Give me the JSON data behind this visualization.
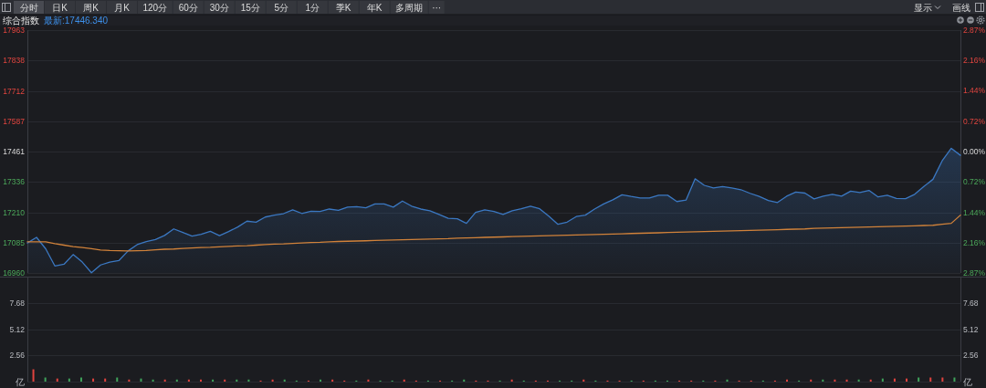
{
  "chart_data": [
    {
      "type": "area",
      "title": "综合指数",
      "subtitle": "最新:17446.340",
      "annotations": [
        "分时",
        "日K",
        "周K",
        "月K",
        "120分",
        "60分",
        "30分",
        "15分",
        "5分",
        "1分",
        "季K",
        "年K",
        "多周期",
        "···",
        "显示",
        "画线"
      ],
      "categories": [
        null,
        null,
        null,
        null,
        null,
        null,
        null,
        null,
        null,
        null,
        null,
        null,
        null,
        null,
        null,
        null,
        null,
        null,
        null,
        null,
        null,
        null,
        null,
        null,
        null,
        null,
        null,
        null,
        null,
        null,
        null,
        null,
        null,
        null,
        null,
        null,
        null,
        null,
        null,
        null,
        null,
        null,
        null,
        null,
        null,
        null,
        null,
        null,
        null,
        null,
        null,
        null,
        null,
        null,
        null,
        null,
        null,
        null,
        null,
        null,
        null,
        null,
        null,
        null,
        null,
        null,
        null,
        null,
        null,
        null,
        null,
        null,
        null,
        null,
        null,
        null,
        null,
        null,
        null,
        null,
        null,
        null,
        null,
        null,
        null,
        null,
        null,
        null,
        null,
        null,
        null,
        null,
        null,
        null,
        null,
        null,
        null,
        null,
        null,
        null,
        null,
        null,
        null
      ],
      "series": [
        {
          "color": "#3b78c2",
          "values": [
            17084,
            17107,
            17060,
            16989,
            16996,
            17036,
            17005,
            16961,
            16993,
            17005,
            17011,
            17051,
            17077,
            17090,
            17098,
            17115,
            17142,
            17127,
            17112,
            17120,
            17132,
            17114,
            17131,
            17150,
            17174,
            17170,
            17191,
            17199,
            17205,
            17221,
            17206,
            17215,
            17214,
            17224,
            17219,
            17232,
            17234,
            17229,
            17245,
            17245,
            17232,
            17257,
            17236,
            17224,
            17217,
            17202,
            17186,
            17184,
            17165,
            17210,
            17221,
            17214,
            17202,
            17217,
            17225,
            17236,
            17225,
            17195,
            17161,
            17170,
            17193,
            17199,
            17224,
            17245,
            17262,
            17283,
            17276,
            17270,
            17270,
            17281,
            17281,
            17255,
            17261,
            17349,
            17322,
            17311,
            17317,
            17311,
            17304,
            17289,
            17276,
            17259,
            17251,
            17277,
            17294,
            17290,
            17266,
            17277,
            17285,
            17277,
            17298,
            17292,
            17301,
            17274,
            17281,
            17268,
            17267,
            17285,
            17317,
            17347,
            17423,
            17475,
            17446
          ]
        },
        {
          "type": "line",
          "color": "#d1823a",
          "values": [
            17089,
            17089,
            17089,
            17081,
            17075,
            17069,
            17065,
            17060,
            17055,
            17053,
            17052,
            17051,
            17052,
            17053,
            17056,
            17058,
            17059,
            17061,
            17063,
            17065,
            17066,
            17068,
            17070,
            17072,
            17073,
            17075,
            17077,
            17079,
            17080,
            17082,
            17084,
            17086,
            17087,
            17089,
            17090,
            17091,
            17092,
            17093,
            17094,
            17095,
            17096,
            17097,
            17098,
            17099,
            17100,
            17101,
            17102,
            17104,
            17105,
            17106,
            17107,
            17108,
            17109,
            17110,
            17111,
            17112,
            17113,
            17114,
            17115,
            17116,
            17117,
            17118,
            17119,
            17120,
            17121,
            17122,
            17123,
            17124,
            17125,
            17126,
            17127,
            17128,
            17129,
            17130,
            17131,
            17132,
            17133,
            17134,
            17135,
            17136,
            17137,
            17138,
            17139,
            17140,
            17141,
            17142,
            17144,
            17145,
            17146,
            17147,
            17148,
            17149,
            17150,
            17151,
            17152,
            17153,
            17154,
            17155,
            17156,
            17157,
            17161,
            17165,
            17199
          ]
        }
      ],
      "ylim": [
        16960,
        17963
      ],
      "yticks": [
        16960,
        17085,
        17210,
        17336,
        17461,
        17587,
        17712,
        17838,
        17963
      ],
      "y2lim": [
        -2.87,
        2.87
      ],
      "y2ticks": [
        {
          "value": 2.87,
          "label": "2.87%"
        },
        {
          "value": 2.16,
          "label": "2.16%"
        },
        {
          "value": 1.44,
          "label": "1.44%"
        },
        {
          "value": 0.72,
          "label": "0.72%"
        },
        {
          "value": 0,
          "label": "0.00%"
        },
        {
          "value": -0.72,
          "label": "0.72%"
        },
        {
          "value": -1.44,
          "label": "1.44%"
        },
        {
          "value": -2.16,
          "label": "2.16%"
        },
        {
          "value": -2.87,
          "label": "2.87%"
        }
      ],
      "grid": "y"
    },
    {
      "type": "bar",
      "categories": [
        null,
        null,
        null,
        null,
        null,
        null,
        null,
        null,
        null,
        null,
        null,
        null,
        null,
        null,
        null,
        null,
        null,
        null,
        null,
        null,
        null,
        null,
        null,
        null,
        null,
        null,
        null,
        null,
        null,
        null,
        null,
        null,
        null,
        null,
        null,
        null,
        null,
        null,
        null,
        null,
        null,
        null,
        null,
        null,
        null,
        null,
        null,
        null,
        null,
        null,
        null,
        null,
        null,
        null,
        null,
        null,
        null,
        null,
        null,
        null,
        null,
        null,
        null,
        null,
        null,
        null,
        null,
        null,
        null,
        null,
        null,
        null,
        null,
        null,
        null,
        null,
        null,
        null
      ],
      "values": [
        1.2,
        0.4,
        0.3,
        0.3,
        0.4,
        0.3,
        0.3,
        0.4,
        0.2,
        0.3,
        0.2,
        0.2,
        0.2,
        0.2,
        0.2,
        0.2,
        0.2,
        0.2,
        0.2,
        0.1,
        0.2,
        0.2,
        0.1,
        0.1,
        0.2,
        0.2,
        0.1,
        0.1,
        0.2,
        0.1,
        0.1,
        0.2,
        0.1,
        0.1,
        0.1,
        0.1,
        0.2,
        0.1,
        0.1,
        0.1,
        0.2,
        0.1,
        0.1,
        0.1,
        0.1,
        0.1,
        0.2,
        0.1,
        0.1,
        0.1,
        0.1,
        0.1,
        0.1,
        0.1,
        0.1,
        0.1,
        0.1,
        0.1,
        0.2,
        0.1,
        0.1,
        0.1,
        0.1,
        0.2,
        0.1,
        0.2,
        0.2,
        0.2,
        0.2,
        0.2,
        0.2,
        0.3,
        0.3,
        0.3,
        0.4,
        0.4,
        0.4,
        0.4
      ],
      "colors": [
        "#e0433e",
        "#3fa35b",
        "#e0433e",
        "#3fa35b",
        "#3fa35b",
        "#e0433e",
        "#e0433e",
        "#3fa35b",
        "#e0433e",
        "#3fa35b",
        "#3fa35b",
        "#e0433e",
        "#3fa35b",
        "#e0433e",
        "#e0433e",
        "#3fa35b",
        "#e0433e",
        "#3fa35b",
        "#3fa35b",
        "#e0433e",
        "#e0433e",
        "#3fa35b",
        "#3fa35b",
        "#e0433e",
        "#3fa35b",
        "#e0433e",
        "#e0433e",
        "#3fa35b",
        "#e0433e",
        "#3fa35b",
        "#3fa35b",
        "#e0433e",
        "#e0433e",
        "#3fa35b",
        "#e0433e",
        "#3fa35b",
        "#3fa35b",
        "#e0433e",
        "#e0433e",
        "#3fa35b",
        "#e0433e",
        "#3fa35b",
        "#e0433e",
        "#e0433e",
        "#3fa35b",
        "#3fa35b",
        "#e0433e",
        "#3fa35b",
        "#e0433e",
        "#e0433e",
        "#3fa35b",
        "#e0433e",
        "#3fa35b",
        "#3fa35b",
        "#e0433e",
        "#e0433e",
        "#3fa35b",
        "#e0433e",
        "#3fa35b",
        "#e0433e",
        "#e0433e",
        "#3fa35b",
        "#e0433e",
        "#e0433e",
        "#3fa35b",
        "#e0433e",
        "#3fa35b",
        "#e0433e",
        "#e0433e",
        "#3fa35b",
        "#e0433e",
        "#3fa35b",
        "#e0433e",
        "#e0433e",
        "#3fa35b",
        "#e0433e",
        "#e0433e",
        "#3fa35b"
      ],
      "ylim": [
        0,
        10.24
      ],
      "yticks": [
        {
          "value": 0,
          "label": "亿"
        },
        2.56,
        5.12,
        7.68
      ],
      "y2lim": [
        0,
        10.24
      ],
      "y2ticks": [
        {
          "value": 0,
          "label": "亿"
        },
        2.56,
        5.12,
        7.68
      ],
      "grid": "y"
    }
  ]
}
